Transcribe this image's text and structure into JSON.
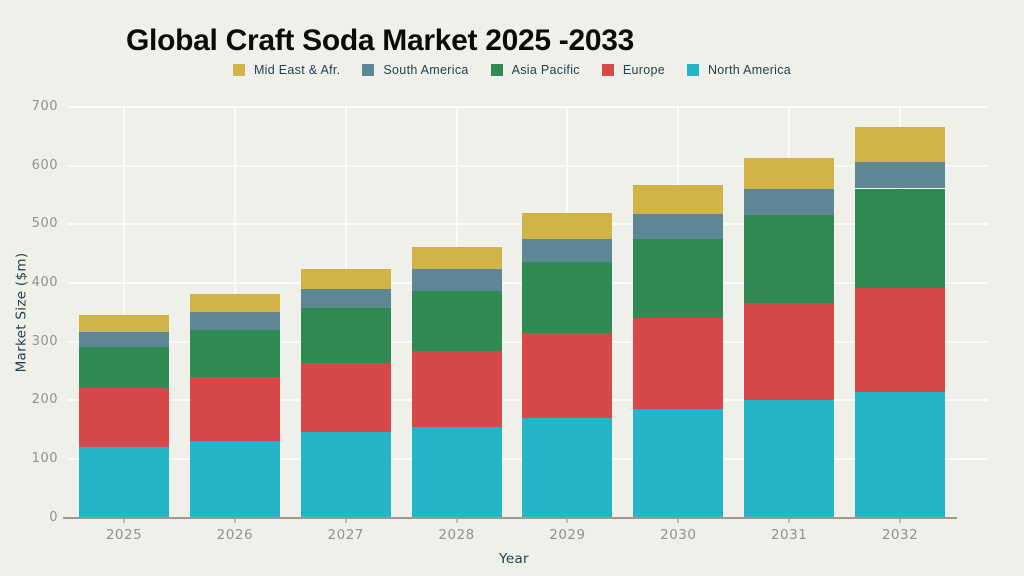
{
  "title": "Global Craft Soda Market 2025 -2033",
  "legend": {
    "items": [
      {
        "label": "Mid East & Afr.",
        "color": "#d2b348"
      },
      {
        "label": "South America",
        "color": "#5e8795"
      },
      {
        "label": "Asia Pacific",
        "color": "#2f8b53"
      },
      {
        "label": "Europe",
        "color": "#d74848"
      },
      {
        "label": "North America",
        "color": "#24b5c8"
      }
    ]
  },
  "chart_data": {
    "type": "bar",
    "stacked": true,
    "title": "Global Craft Soda Market 2025 -2033",
    "xlabel": "Year",
    "ylabel": "Market Size ($m)",
    "categories": [
      "2025",
      "2026",
      "2027",
      "2028",
      "2029",
      "2030",
      "2031",
      "2032"
    ],
    "series": [
      {
        "name": "North America",
        "color": "#24b5c8",
        "values": [
          120,
          130,
          145,
          155,
          170,
          185,
          200,
          214
        ]
      },
      {
        "name": "Europe",
        "color": "#d74848",
        "values": [
          100,
          110,
          118,
          129,
          145,
          155,
          165,
          177
        ]
      },
      {
        "name": "Asia Pacific",
        "color": "#2f8b53",
        "values": [
          71,
          80,
          95,
          102,
          120,
          135,
          150,
          170
        ]
      },
      {
        "name": "South America",
        "color": "#5e8795",
        "values": [
          26,
          31,
          32,
          37,
          40,
          42,
          45,
          45
        ]
      },
      {
        "name": "Mid East & Afr.",
        "color": "#d2b348",
        "values": [
          28,
          30,
          34,
          39,
          45,
          50,
          53,
          60
        ]
      }
    ],
    "totals": [
      345,
      381,
      424,
      462,
      520,
      567,
      613,
      666
    ],
    "ylim": [
      0,
      700
    ],
    "yticks": [
      0,
      100,
      200,
      300,
      400,
      500,
      600,
      700
    ],
    "grid": true,
    "legend_position": "top"
  },
  "colors": {
    "background": "#f0f0ea",
    "gridline": "#fbfbf7",
    "axis_line": "#a29a8e",
    "tick_label": "#8e948e",
    "label_text": "#24414f",
    "title_text": "#0b0b0b"
  }
}
